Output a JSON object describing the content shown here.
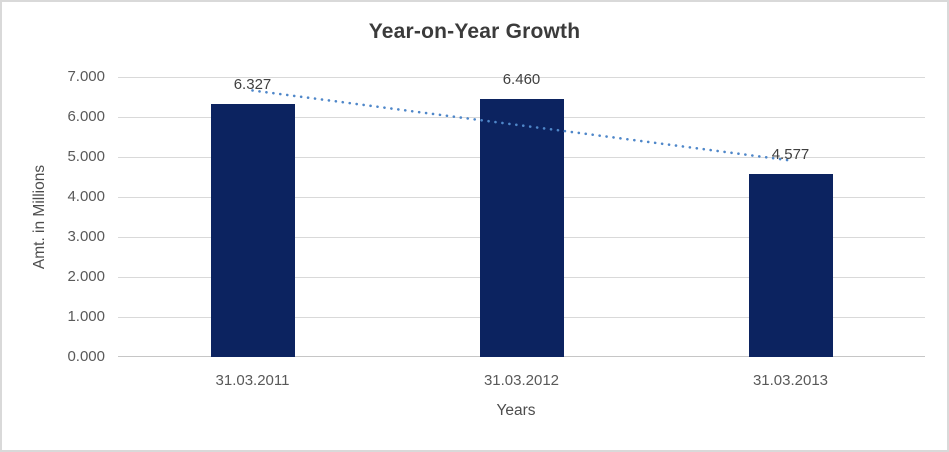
{
  "frame": {
    "background": "#ffffff",
    "border_color": "#d9d9d9"
  },
  "chart_data": {
    "type": "bar",
    "title": "Year-on-Year Growth",
    "xlabel": "Years",
    "ylabel": "Amt. in Millions",
    "categories": [
      "31.03.2011",
      "31.03.2012",
      "31.03.2013"
    ],
    "values": [
      6.327,
      6.46,
      4.577
    ],
    "data_labels": [
      "6.327",
      "6.460",
      "4.577"
    ],
    "ylim": [
      0,
      7
    ],
    "ytick_step": 1,
    "ytick_labels": [
      "0.000",
      "1.000",
      "2.000",
      "3.000",
      "4.000",
      "5.000",
      "6.000",
      "7.000"
    ],
    "grid": true,
    "legend": "none",
    "bar_color": "#0c2360",
    "gridline_color": "#d9d9d9",
    "axis_line_color": "#c6c6c6",
    "title_color": "#3b3b3b",
    "tick_label_color": "#595959",
    "data_label_color": "#404040",
    "trendline": {
      "type": "linear",
      "style": "dotted",
      "color": "#4f87c9",
      "endpoint_values": [
        6.663,
        4.913
      ]
    }
  }
}
